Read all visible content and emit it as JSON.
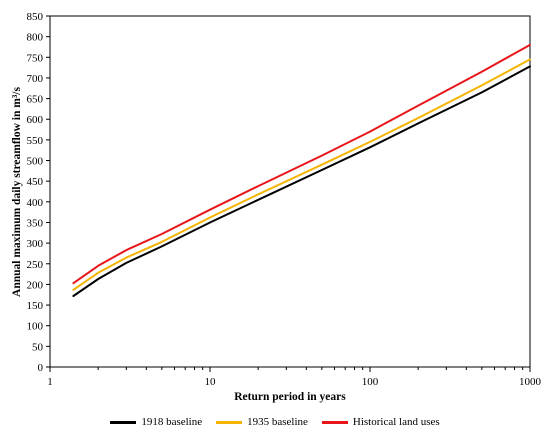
{
  "chart_data": {
    "type": "line",
    "title": "",
    "xlabel": "Return period in years",
    "ylabel": "Annual maximum daily streamflow in m³/s",
    "xscale": "log",
    "xlim": [
      1,
      1000
    ],
    "ylim": [
      0,
      850
    ],
    "x_ticks": [
      "1",
      "10",
      "100",
      "1000"
    ],
    "y_ticks": [
      "0",
      "50",
      "100",
      "150",
      "200",
      "250",
      "300",
      "350",
      "400",
      "450",
      "500",
      "550",
      "600",
      "650",
      "700",
      "750",
      "800",
      "850"
    ],
    "grid": false,
    "legend_position": "bottom",
    "series": [
      {
        "name": "1918 baseline",
        "color": "#000000",
        "points": [
          [
            1.4,
            172
          ],
          [
            2,
            213
          ],
          [
            3,
            252
          ],
          [
            5,
            292
          ],
          [
            10,
            350
          ],
          [
            20,
            405
          ],
          [
            50,
            477
          ],
          [
            100,
            532
          ],
          [
            200,
            590
          ],
          [
            500,
            665
          ],
          [
            1000,
            728
          ]
        ]
      },
      {
        "name": "1935 baseline",
        "color": "#f5b400",
        "points": [
          [
            1.4,
            187
          ],
          [
            2,
            228
          ],
          [
            3,
            265
          ],
          [
            5,
            303
          ],
          [
            10,
            362
          ],
          [
            20,
            418
          ],
          [
            50,
            490
          ],
          [
            100,
            545
          ],
          [
            200,
            603
          ],
          [
            500,
            682
          ],
          [
            1000,
            745
          ]
        ]
      },
      {
        "name": "Historical land uses",
        "color": "#e8161b",
        "points": [
          [
            1.4,
            203
          ],
          [
            2,
            245
          ],
          [
            3,
            283
          ],
          [
            5,
            322
          ],
          [
            10,
            381
          ],
          [
            20,
            438
          ],
          [
            50,
            512
          ],
          [
            100,
            570
          ],
          [
            200,
            633
          ],
          [
            500,
            715
          ],
          [
            1000,
            780
          ]
        ]
      }
    ]
  }
}
